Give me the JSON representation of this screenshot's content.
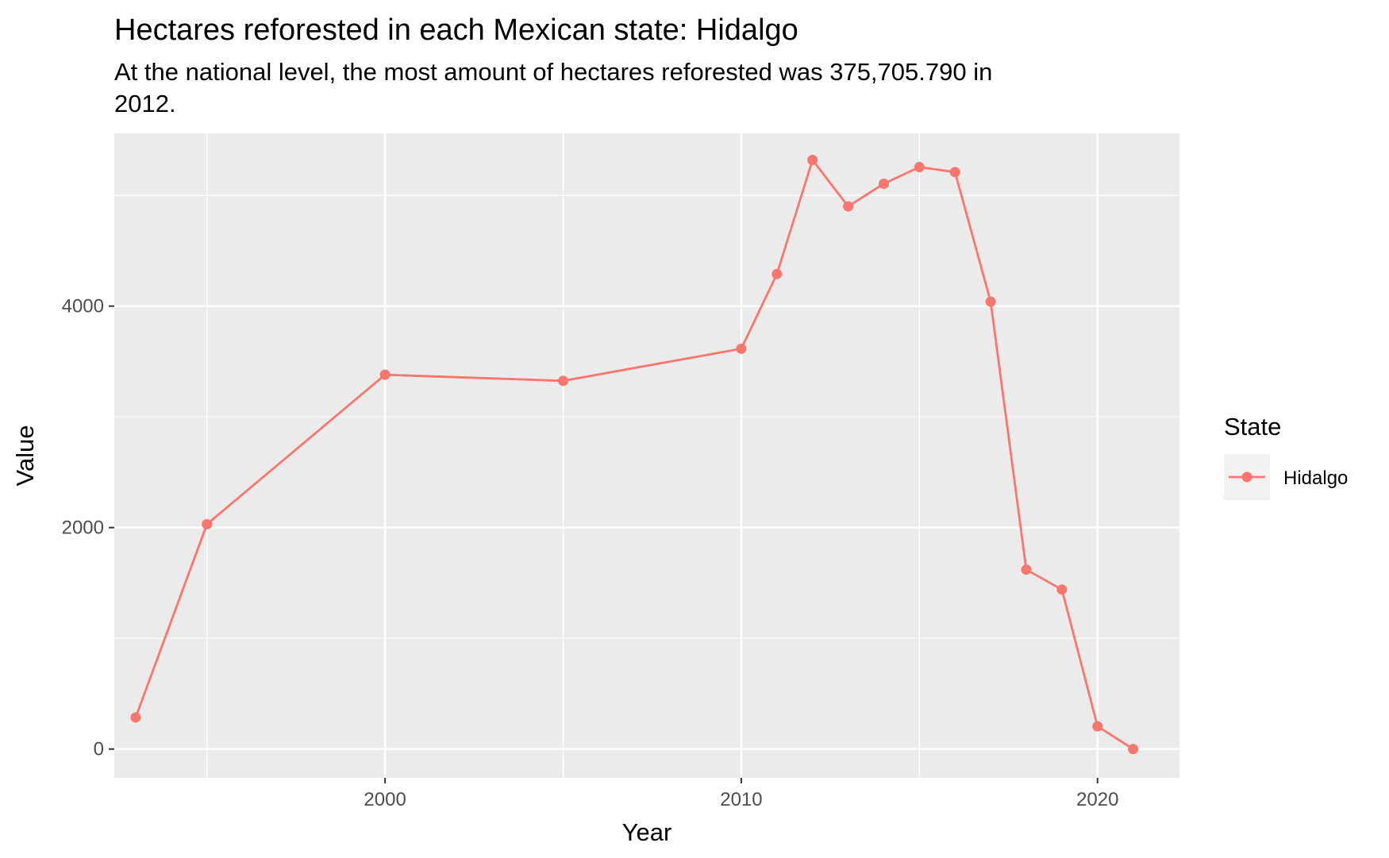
{
  "chart_data": {
    "type": "line",
    "title": "Hectares reforested in each Mexican state: Hidalgo",
    "subtitle_lines": [
      "At the national level, the most amount of hectares reforested was 375,705.790 in",
      "2012."
    ],
    "xlabel": "Year",
    "ylabel": "Value",
    "xlim": [
      1992.4,
      2022.3
    ],
    "ylim": [
      -260,
      5560
    ],
    "x_ticks": [
      2000,
      2010,
      2020
    ],
    "x_minor_ticks": [
      1995,
      2005,
      2015
    ],
    "y_ticks": [
      0,
      2000,
      4000
    ],
    "y_minor_ticks": [
      1000,
      3000,
      5000
    ],
    "grid": true,
    "legend": {
      "title": "State",
      "position": "right"
    },
    "series": [
      {
        "name": "Hidalgo",
        "color": "#F8766D",
        "x": [
          1993,
          1995,
          2000,
          2005,
          2010,
          2011,
          2012,
          2013,
          2014,
          2015,
          2016,
          2017,
          2018,
          2019,
          2020,
          2021
        ],
        "y": [
          285,
          2030,
          3380,
          3325,
          3615,
          4290,
          5320,
          4900,
          5105,
          5255,
          5210,
          4040,
          1620,
          1440,
          205,
          0
        ]
      }
    ],
    "colors": {
      "panel_background": "#EBEBEB",
      "grid_major": "#FFFFFF",
      "grid_minor": "#FFFFFF",
      "tick_label": "#4D4D4D",
      "legend_key_background": "#F2F2F2"
    }
  }
}
